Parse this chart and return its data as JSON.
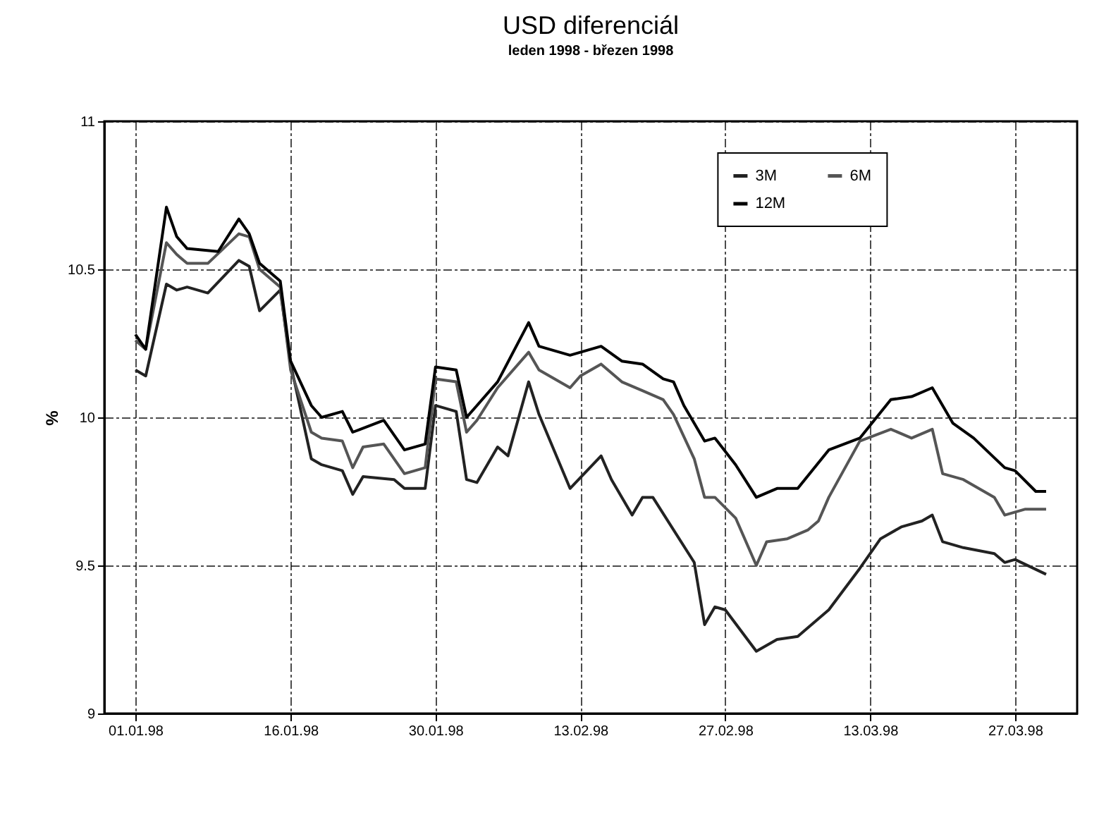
{
  "chart_data": {
    "type": "line",
    "title": "USD diferenciál",
    "subtitle": "leden 1998 - březen 1998",
    "ylabel": "%",
    "xlim": [
      "1997-12-29",
      "1998-04-02"
    ],
    "xticks": [
      {
        "value": "1998-01-01",
        "label": "01.01.98"
      },
      {
        "value": "1998-01-16",
        "label": "16.01.98"
      },
      {
        "value": "1998-01-30",
        "label": "30.01.98"
      },
      {
        "value": "1998-02-13",
        "label": "13.02.98"
      },
      {
        "value": "1998-02-27",
        "label": "27.02.98"
      },
      {
        "value": "1998-03-13",
        "label": "13.03.98"
      },
      {
        "value": "1998-03-27",
        "label": "27.03.98"
      }
    ],
    "ylim": [
      9,
      11
    ],
    "yticks": [
      9,
      9.5,
      10,
      10.5,
      11
    ],
    "grid": true,
    "legend": "top right",
    "line_style": "solid",
    "series": [
      {
        "name": "3M",
        "color": "#222222",
        "x": [
          "1998-01-01",
          "1998-01-02",
          "1998-01-04",
          "1998-01-05",
          "1998-01-06",
          "1998-01-08",
          "1998-01-11",
          "1998-01-12",
          "1998-01-13",
          "1998-01-15",
          "1998-01-16",
          "1998-01-18",
          "1998-01-19",
          "1998-01-21",
          "1998-01-22",
          "1998-01-23",
          "1998-01-26",
          "1998-01-27",
          "1998-01-29",
          "1998-01-30",
          "1998-02-01",
          "1998-02-02",
          "1998-02-03",
          "1998-02-05",
          "1998-02-06",
          "1998-02-08",
          "1998-02-09",
          "1998-02-12",
          "1998-02-15",
          "1998-02-16",
          "1998-02-18",
          "1998-02-19",
          "1998-02-20",
          "1998-02-24",
          "1998-02-25",
          "1998-02-26",
          "1998-02-27",
          "1998-03-02",
          "1998-03-04",
          "1998-03-06",
          "1998-03-09",
          "1998-03-12",
          "1998-03-14",
          "1998-03-16",
          "1998-03-18",
          "1998-03-19",
          "1998-03-20",
          "1998-03-22",
          "1998-03-25",
          "1998-03-26",
          "1998-03-27",
          "1998-03-30"
        ],
        "values": [
          10.16,
          10.14,
          10.45,
          10.43,
          10.44,
          10.42,
          10.53,
          10.51,
          10.36,
          10.43,
          10.18,
          9.86,
          9.84,
          9.82,
          9.74,
          9.8,
          9.79,
          9.76,
          9.76,
          10.04,
          10.02,
          9.79,
          9.78,
          9.9,
          9.87,
          10.12,
          10.01,
          9.76,
          9.87,
          9.79,
          9.67,
          9.73,
          9.73,
          9.51,
          9.3,
          9.36,
          9.35,
          9.21,
          9.25,
          9.26,
          9.35,
          9.49,
          9.59,
          9.63,
          9.65,
          9.67,
          9.58,
          9.56,
          9.54,
          9.51,
          9.52,
          9.47
        ]
      },
      {
        "name": "6M",
        "color": "#555555",
        "x": [
          "1998-01-01",
          "1998-01-02",
          "1998-01-04",
          "1998-01-05",
          "1998-01-06",
          "1998-01-08",
          "1998-01-11",
          "1998-01-12",
          "1998-01-13",
          "1998-01-15",
          "1998-01-16",
          "1998-01-18",
          "1998-01-19",
          "1998-01-21",
          "1998-01-22",
          "1998-01-23",
          "1998-01-25",
          "1998-01-27",
          "1998-01-29",
          "1998-01-30",
          "1998-02-01",
          "1998-02-02",
          "1998-02-03",
          "1998-02-05",
          "1998-02-08",
          "1998-02-09",
          "1998-02-12",
          "1998-02-13",
          "1998-02-15",
          "1998-02-17",
          "1998-02-19",
          "1998-02-21",
          "1998-02-22",
          "1998-02-24",
          "1998-02-25",
          "1998-02-26",
          "1998-02-28",
          "1998-03-02",
          "1998-03-03",
          "1998-03-05",
          "1998-03-07",
          "1998-03-08",
          "1998-03-09",
          "1998-03-12",
          "1998-03-15",
          "1998-03-17",
          "1998-03-19",
          "1998-03-20",
          "1998-03-22",
          "1998-03-25",
          "1998-03-26",
          "1998-03-28",
          "1998-03-30"
        ],
        "values": [
          10.26,
          10.23,
          10.59,
          10.55,
          10.52,
          10.52,
          10.62,
          10.61,
          10.5,
          10.44,
          10.16,
          9.95,
          9.93,
          9.92,
          9.83,
          9.9,
          9.91,
          9.81,
          9.83,
          10.13,
          10.12,
          9.95,
          9.99,
          10.1,
          10.22,
          10.16,
          10.1,
          10.14,
          10.18,
          10.12,
          10.09,
          10.06,
          10.01,
          9.86,
          9.73,
          9.73,
          9.66,
          9.5,
          9.58,
          9.59,
          9.62,
          9.65,
          9.73,
          9.92,
          9.96,
          9.93,
          9.96,
          9.81,
          9.79,
          9.73,
          9.67,
          9.69,
          9.69
        ]
      },
      {
        "name": "12M",
        "color": "#000000",
        "x": [
          "1998-01-01",
          "1998-01-02",
          "1998-01-04",
          "1998-01-05",
          "1998-01-06",
          "1998-01-09",
          "1998-01-11",
          "1998-01-12",
          "1998-01-13",
          "1998-01-15",
          "1998-01-16",
          "1998-01-18",
          "1998-01-19",
          "1998-01-21",
          "1998-01-22",
          "1998-01-25",
          "1998-01-27",
          "1998-01-29",
          "1998-01-30",
          "1998-02-01",
          "1998-02-02",
          "1998-02-03",
          "1998-02-05",
          "1998-02-08",
          "1998-02-09",
          "1998-02-12",
          "1998-02-15",
          "1998-02-17",
          "1998-02-19",
          "1998-02-21",
          "1998-02-22",
          "1998-02-23",
          "1998-02-25",
          "1998-02-26",
          "1998-02-28",
          "1998-03-02",
          "1998-03-04",
          "1998-03-06",
          "1998-03-09",
          "1998-03-12",
          "1998-03-15",
          "1998-03-17",
          "1998-03-19",
          "1998-03-21",
          "1998-03-23",
          "1998-03-26",
          "1998-03-27",
          "1998-03-29",
          "1998-03-30"
        ],
        "values": [
          10.28,
          10.23,
          10.71,
          10.61,
          10.57,
          10.56,
          10.67,
          10.62,
          10.52,
          10.46,
          10.19,
          10.04,
          10,
          10.02,
          9.95,
          9.99,
          9.89,
          9.91,
          10.17,
          10.16,
          10,
          10.04,
          10.12,
          10.32,
          10.24,
          10.21,
          10.24,
          10.19,
          10.18,
          10.13,
          10.12,
          10.04,
          9.92,
          9.93,
          9.84,
          9.73,
          9.76,
          9.76,
          9.89,
          9.93,
          10.06,
          10.07,
          10.1,
          9.98,
          9.93,
          9.83,
          9.82,
          9.75,
          9.75
        ]
      }
    ]
  }
}
